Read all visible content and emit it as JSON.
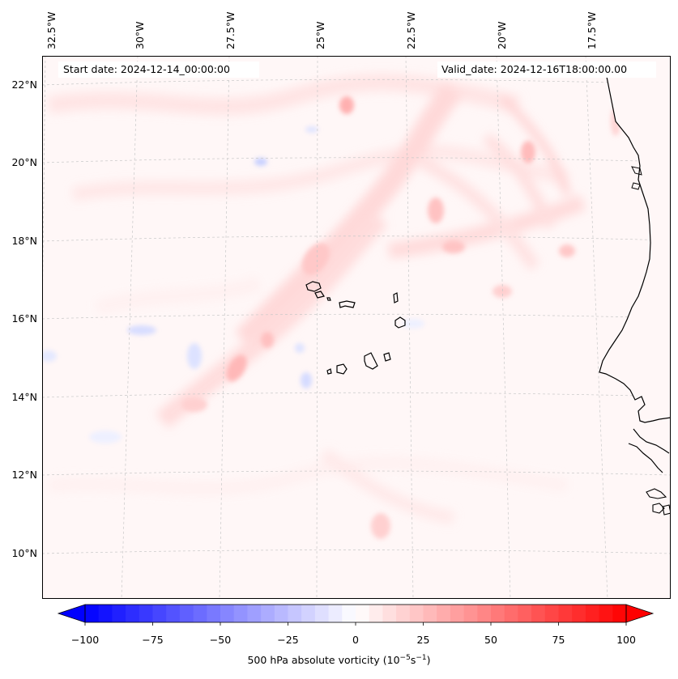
{
  "map": {
    "start_date_text": "Start date: 2024-12-14_00:00:00",
    "valid_date_text": "Valid_date: 2024-12-16T18:00:00.00",
    "longitude_labels": [
      "32.5°W",
      "30°W",
      "27.5°W",
      "25°W",
      "22.5°W",
      "20°W",
      "17.5°W"
    ],
    "latitude_labels": [
      "22°N",
      "20°N",
      "18°N",
      "16°N",
      "14°N",
      "12°N",
      "10°N"
    ],
    "region": "Cape Verde Islands and West African coast",
    "gridlines": true,
    "coastline_color": "#000000"
  },
  "colorbar": {
    "label_prefix": "500 hPa absolute vorticity (10",
    "label_exp1": "−5",
    "label_mid": "s",
    "label_exp2": "−1",
    "label_suffix": ")",
    "ticks": [
      "−100",
      "−75",
      "−50",
      "−25",
      "0",
      "25",
      "50",
      "75",
      "100"
    ],
    "min": -100,
    "max": 100,
    "colormap": "bwr",
    "extend": "both",
    "low_color": "#0000ff",
    "mid_color": "#ffffff",
    "high_color": "#ff0000"
  }
}
